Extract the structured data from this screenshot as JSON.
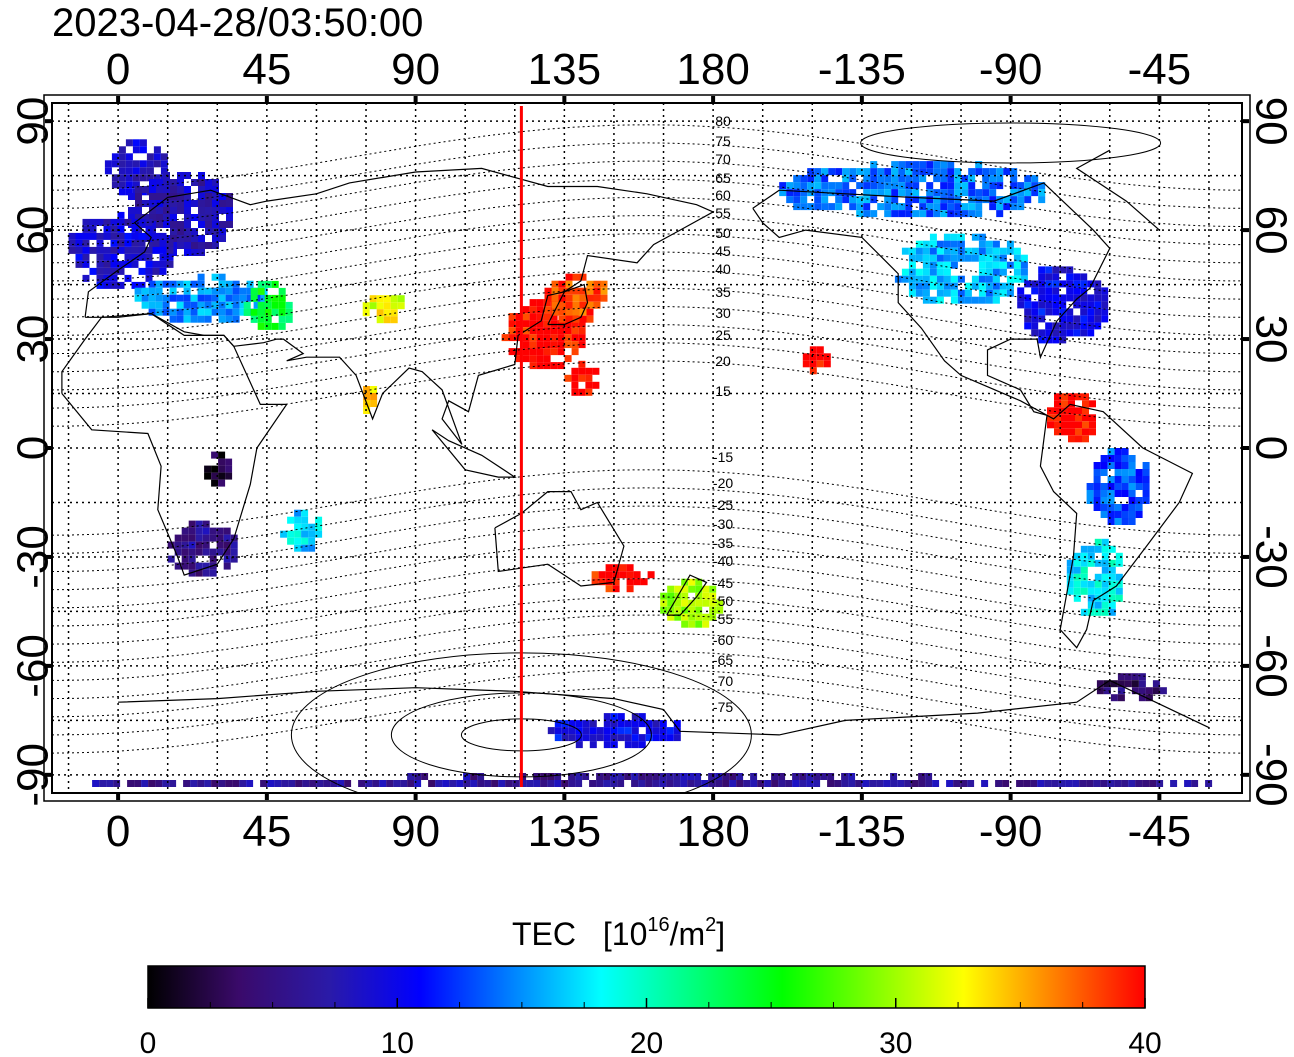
{
  "header": {
    "timestamp": "2023-04-28/03:50:00"
  },
  "map": {
    "top_lon_ticks": [
      "0",
      "45",
      "90",
      "135",
      "180",
      "-135",
      "-90",
      "-45"
    ],
    "bottom_lon_ticks": [
      "0",
      "45",
      "90",
      "135",
      "180",
      "-135",
      "-90",
      "-45"
    ],
    "lat_ticks": [
      "90",
      "60",
      "30",
      "0",
      "-30",
      "-60",
      "-90"
    ],
    "lat_values": [
      90,
      60,
      30,
      0,
      -30,
      -60,
      -90
    ],
    "lon_values": [
      0,
      45,
      90,
      135,
      180,
      225,
      270,
      315
    ],
    "lon_range": [
      -20,
      340
    ],
    "lat_range": [
      -95,
      95
    ],
    "sun_meridian_lon": 122,
    "sun_meridian_color": "#ff0000",
    "mag_lat_labels_north": [
      "80",
      "75",
      "70",
      "65",
      "60",
      "55",
      "50",
      "45",
      "40",
      "35",
      "30",
      "25",
      "20",
      "15"
    ],
    "mag_lat_labels_south": [
      "-15",
      "-20",
      "-25",
      "-30",
      "-35",
      "-40",
      "-45",
      "-50",
      "-55",
      "-60",
      "-65",
      "-70",
      "-75"
    ]
  },
  "colorbar": {
    "title": "TEC",
    "unit_base": "[10",
    "unit_exp": "16",
    "unit_mid": "/m",
    "unit_exp2": "2",
    "unit_end": "]",
    "tick_labels": [
      "0",
      "10",
      "20",
      "30",
      "40"
    ],
    "tick_values": [
      0,
      10,
      20,
      30,
      40
    ],
    "range": [
      0,
      40
    ],
    "stops": [
      "#000000",
      "#3a0a6a",
      "#2a1aa8",
      "#0000ff",
      "#0080ff",
      "#00ffff",
      "#00ff80",
      "#00ff00",
      "#80ff00",
      "#ffff00",
      "#ff8000",
      "#ff0000"
    ]
  },
  "tec_regions": [
    {
      "lon": 5,
      "lat": 78,
      "w": 18,
      "h": 14,
      "tec": 9
    },
    {
      "lon": 18,
      "lat": 65,
      "w": 30,
      "h": 22,
      "tec": 8
    },
    {
      "lon": 0,
      "lat": 55,
      "w": 30,
      "h": 20,
      "tec": 9
    },
    {
      "lon": 25,
      "lat": 42,
      "w": 40,
      "h": 12,
      "tec": 15
    },
    {
      "lon": 45,
      "lat": 40,
      "w": 14,
      "h": 12,
      "tec": 24
    },
    {
      "lon": 80,
      "lat": 40,
      "w": 12,
      "h": 8,
      "tec": 32
    },
    {
      "lon": 75,
      "lat": 15,
      "w": 6,
      "h": 8,
      "tec": 34
    },
    {
      "lon": 30,
      "lat": -5,
      "w": 8,
      "h": 8,
      "tec": 2
    },
    {
      "lon": 25,
      "lat": -27,
      "w": 20,
      "h": 14,
      "tec": 6
    },
    {
      "lon": 55,
      "lat": -22,
      "w": 12,
      "h": 10,
      "tec": 17
    },
    {
      "lon": 128,
      "lat": 32,
      "w": 24,
      "h": 18,
      "tec": 40
    },
    {
      "lon": 138,
      "lat": 42,
      "w": 18,
      "h": 12,
      "tec": 38
    },
    {
      "lon": 140,
      "lat": 20,
      "w": 10,
      "h": 8,
      "tec": 40
    },
    {
      "lon": 150,
      "lat": -35,
      "w": 22,
      "h": 6,
      "tec": 40
    },
    {
      "lon": 173,
      "lat": -42,
      "w": 18,
      "h": 12,
      "tec": 30
    },
    {
      "lon": 240,
      "lat": 72,
      "w": 80,
      "h": 14,
      "tec": 14
    },
    {
      "lon": 255,
      "lat": 50,
      "w": 40,
      "h": 18,
      "tec": 16
    },
    {
      "lon": 285,
      "lat": 40,
      "w": 26,
      "h": 20,
      "tec": 10
    },
    {
      "lon": 288,
      "lat": 10,
      "w": 14,
      "h": 14,
      "tec": 40
    },
    {
      "lon": 302,
      "lat": -10,
      "w": 18,
      "h": 20,
      "tec": 13
    },
    {
      "lon": 295,
      "lat": -35,
      "w": 16,
      "h": 20,
      "tec": 18
    },
    {
      "lon": 305,
      "lat": -65,
      "w": 22,
      "h": 6,
      "tec": 4
    },
    {
      "lon": 150,
      "lat": -77,
      "w": 40,
      "h": 8,
      "tec": 10
    },
    {
      "lon": 160,
      "lat": -91,
      "w": 340,
      "h": 3,
      "tec": 6
    },
    {
      "lon": 210,
      "lat": 25,
      "w": 10,
      "h": 6,
      "tec": 40
    }
  ]
}
